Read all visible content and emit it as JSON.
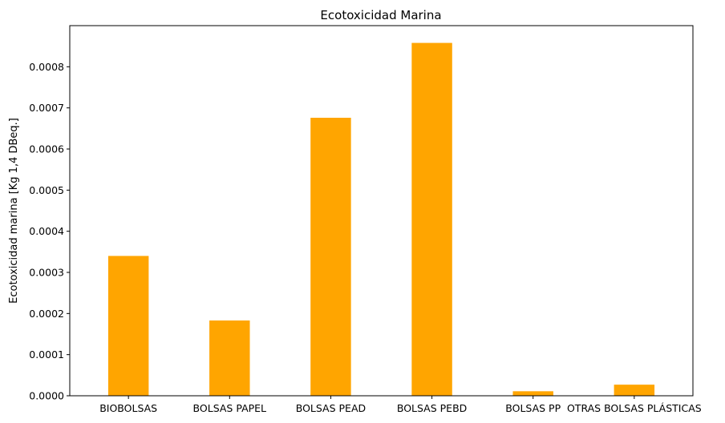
{
  "chart_data": {
    "type": "bar",
    "title": "Ecotoxicidad Marina",
    "xlabel": "",
    "ylabel": "Ecotoxicidad marina [Kg 1,4 DBeq.]",
    "categories": [
      "BIOBOLSAS",
      "BOLSAS PAPEL",
      "BOLSAS PEAD",
      "BOLSAS PEBD",
      "BOLSAS PP",
      "OTRAS BOLSAS PLÁSTICAS"
    ],
    "values": [
      0.00034,
      0.000183,
      0.000676,
      0.000858,
      1.1e-05,
      2.7e-05
    ],
    "ylim": [
      0,
      0.0009
    ],
    "yticks": [
      "0.0000",
      "0.0001",
      "0.0002",
      "0.0003",
      "0.0004",
      "0.0005",
      "0.0006",
      "0.0007",
      "0.0008"
    ],
    "bar_color": "#ffa500",
    "grid": false,
    "legend": "none"
  }
}
